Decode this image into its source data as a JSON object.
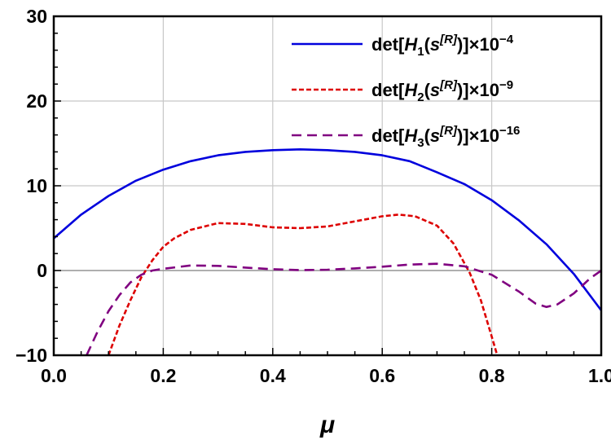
{
  "chart_data": {
    "type": "line",
    "xlabel": "μ",
    "ylabel": "",
    "xlim": [
      0.0,
      1.0
    ],
    "ylim": [
      -10,
      30
    ],
    "xticks": [
      "0.0",
      "0.2",
      "0.4",
      "0.6",
      "0.8",
      "1.0"
    ],
    "yticks": [
      "−10",
      "0",
      "10",
      "20",
      "30"
    ],
    "grid": true,
    "legend_position": "top-right",
    "series": [
      {
        "id": "h1",
        "name": "det[H1(s[R])]×10−4",
        "legend": {
          "pre": "det[",
          "var": "H",
          "sub": "1",
          "mid1": "(",
          "s": "s",
          "sup": "[R]",
          "mid2": ")]×10",
          "exp": "−4"
        },
        "color": "#0000dd",
        "dash": "solid",
        "x": [
          0.0,
          0.05,
          0.1,
          0.15,
          0.2,
          0.25,
          0.3,
          0.35,
          0.4,
          0.45,
          0.5,
          0.55,
          0.6,
          0.65,
          0.7,
          0.75,
          0.8,
          0.85,
          0.9,
          0.95,
          1.0
        ],
        "y": [
          3.8,
          6.6,
          8.8,
          10.6,
          11.9,
          12.9,
          13.6,
          14.0,
          14.2,
          14.3,
          14.2,
          14.0,
          13.6,
          12.9,
          11.6,
          10.2,
          8.3,
          5.9,
          3.1,
          -0.4,
          -4.7
        ]
      },
      {
        "id": "h2",
        "name": "det[H2(s[R])]×10−9",
        "legend": {
          "pre": "det[",
          "var": "H",
          "sub": "2",
          "mid1": "(",
          "s": "s",
          "sup": "[R]",
          "mid2": ")]×10",
          "exp": "−9"
        },
        "color": "#dd0000",
        "dash": "short",
        "x": [
          0.1,
          0.12,
          0.14,
          0.16,
          0.18,
          0.2,
          0.22,
          0.25,
          0.3,
          0.35,
          0.4,
          0.45,
          0.5,
          0.55,
          0.6,
          0.63,
          0.66,
          0.7,
          0.73,
          0.76,
          0.78,
          0.8,
          0.81
        ],
        "y": [
          -10.0,
          -6.5,
          -3.5,
          -0.8,
          1.2,
          2.8,
          3.8,
          4.8,
          5.6,
          5.5,
          5.1,
          5.0,
          5.2,
          5.8,
          6.4,
          6.6,
          6.4,
          5.3,
          3.2,
          -0.3,
          -3.5,
          -7.8,
          -10.0
        ]
      },
      {
        "id": "h3",
        "name": "det[H3(s[R])]×10−16",
        "legend": {
          "pre": "det[",
          "var": "H",
          "sub": "3",
          "mid1": "(",
          "s": "s",
          "sup": "[R]",
          "mid2": ")]×10",
          "exp": "−16"
        },
        "color": "#800080",
        "dash": "long",
        "x": [
          0.06,
          0.08,
          0.1,
          0.12,
          0.14,
          0.16,
          0.18,
          0.2,
          0.25,
          0.3,
          0.35,
          0.4,
          0.45,
          0.5,
          0.55,
          0.6,
          0.65,
          0.7,
          0.75,
          0.8,
          0.85,
          0.88,
          0.9,
          0.92,
          0.95,
          0.98,
          1.0
        ],
        "y": [
          -10.0,
          -7.2,
          -4.8,
          -2.9,
          -1.4,
          -0.5,
          0.0,
          0.2,
          0.6,
          0.55,
          0.35,
          0.15,
          0.05,
          0.1,
          0.25,
          0.45,
          0.7,
          0.8,
          0.5,
          -0.5,
          -2.5,
          -3.9,
          -4.3,
          -4.0,
          -2.7,
          -0.9,
          0.0
        ]
      }
    ]
  }
}
